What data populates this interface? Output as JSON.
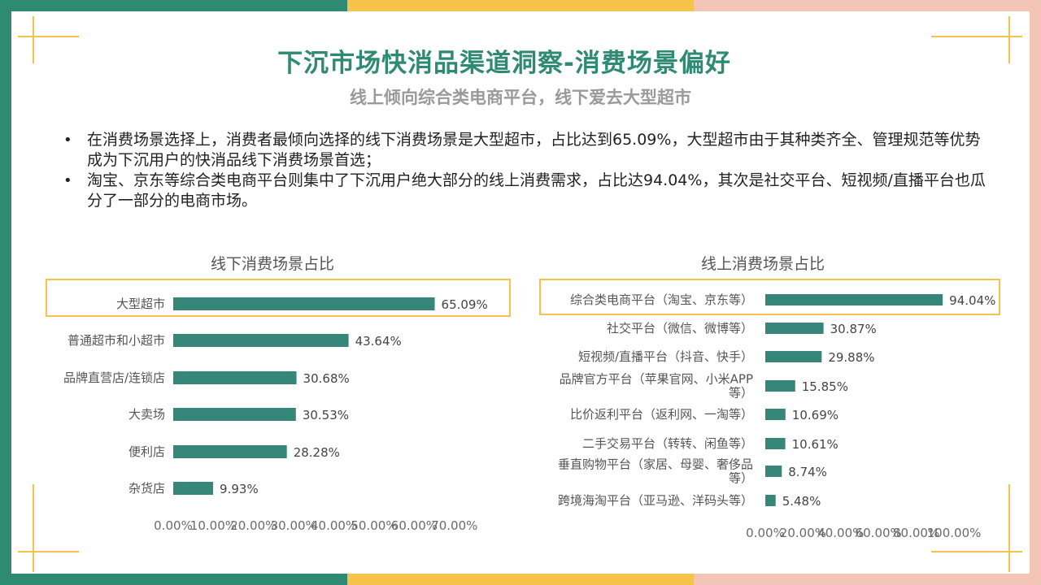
{
  "header": {
    "title": "下沉市场快消品渠道洞察-消费场景偏好",
    "subtitle": "线上倾向综合类电商平台，线下爱去大型超市"
  },
  "bullets": [
    "在消费场景选择上，消费者最倾向选择的线下消费场景是大型超市，占比达到65.09%，大型超市由于其种类齐全、管理规范等优势成为下沉用户的快消品线下消费场景首选；",
    "淘宝、京东等综合类电商平台则集中了下沉用户绝大部分的线上消费需求，占比达94.04%，其次是社交平台、短视频/直播平台也瓜分了一部分的电商市场。"
  ],
  "colors": {
    "bar": "#36877a",
    "accent_green": "#2f8a73",
    "accent_yellow": "#f5c24c",
    "accent_pink": "#f2c5b8",
    "highlight_box": "#f5c24c"
  },
  "chart_data": [
    {
      "type": "bar",
      "orientation": "horizontal",
      "title": "线下消费场景占比",
      "categories": [
        "大型超市",
        "普通超市和小超市",
        "品牌直营店/连锁店",
        "大卖场",
        "便利店",
        "杂货店"
      ],
      "values": [
        65.09,
        43.64,
        30.68,
        30.53,
        28.28,
        9.93
      ],
      "data_labels": [
        "65.09%",
        "43.64%",
        "30.68%",
        "30.53%",
        "28.28%",
        "9.93%"
      ],
      "xlim": [
        0,
        70
      ],
      "ticks": [
        "0.00%",
        "10.00%",
        "20.00%",
        "30.00%",
        "40.00%",
        "50.00%",
        "60.00%",
        "70.00%"
      ],
      "highlighted": "大型超市",
      "grid": false
    },
    {
      "type": "bar",
      "orientation": "horizontal",
      "title": "线上消费场景占比",
      "categories": [
        "综合类电商平台（淘宝、京东等）",
        "社交平台（微信、微博等）",
        "短视频/直播平台（抖音、快手）",
        "品牌官方平台（苹果官网、小米APP等）",
        "比价返利平台（返利网、一淘等）",
        "二手交易平台（转转、闲鱼等）",
        "垂直购物平台（家居、母婴、奢侈品等）",
        "跨境海淘平台（亚马逊、洋码头等）"
      ],
      "values": [
        94.04,
        30.87,
        29.88,
        15.85,
        10.69,
        10.61,
        8.74,
        5.48
      ],
      "data_labels": [
        "94.04%",
        "30.87%",
        "29.88%",
        "15.85%",
        "10.69%",
        "10.61%",
        "8.74%",
        "5.48%"
      ],
      "xlim": [
        0,
        100
      ],
      "ticks": [
        "0.00%",
        "20.00%",
        "40.00%",
        "60.00%",
        "80.00%",
        "100.00%"
      ],
      "highlighted": "综合类电商平台（淘宝、京东等）",
      "grid": false
    }
  ]
}
